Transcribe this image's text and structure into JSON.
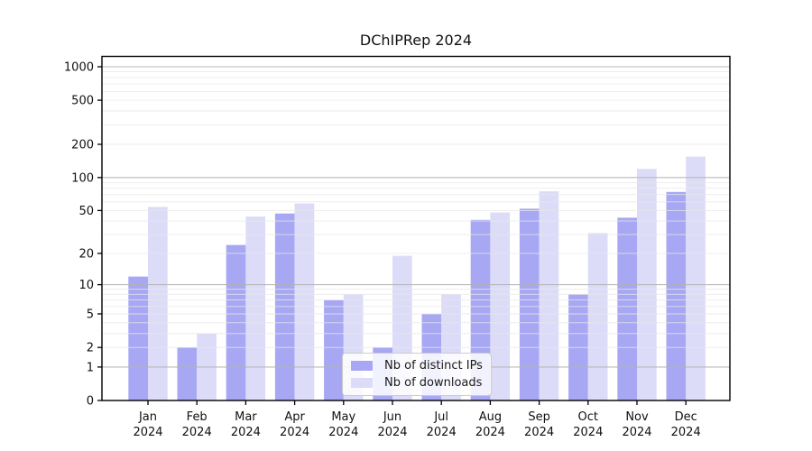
{
  "page": {
    "background": "#ffffff"
  },
  "chart_data": {
    "type": "bar",
    "title": "DChIPRep 2024",
    "categories": [
      "Jan 2024",
      "Feb 2024",
      "Mar 2024",
      "Apr 2024",
      "May 2024",
      "Jun 2024",
      "Jul 2024",
      "Aug 2024",
      "Sep 2024",
      "Oct 2024",
      "Nov 2024",
      "Dec 2024"
    ],
    "series": [
      {
        "name": "Nb of distinct IPs",
        "color": "#a7a7f4",
        "values": [
          12,
          2,
          24,
          47,
          7,
          2,
          5,
          41,
          52,
          8,
          43,
          74
        ]
      },
      {
        "name": "Nb of downloads",
        "color": "#dcdcf9",
        "values": [
          54,
          3,
          44,
          58,
          8,
          19,
          8,
          48,
          75,
          31,
          120,
          155
        ]
      }
    ],
    "xlabel": "",
    "ylabel": "",
    "yscale": "log1p",
    "yticks": [
      0,
      1,
      2,
      5,
      10,
      20,
      50,
      100,
      200,
      500,
      1000
    ],
    "ylim": [
      0,
      1240
    ],
    "grid": {
      "major_at": [
        1,
        10,
        100,
        1000
      ],
      "minor_at": [
        2,
        3,
        4,
        5,
        6,
        7,
        8,
        9,
        20,
        30,
        40,
        50,
        60,
        70,
        80,
        90,
        200,
        300,
        400,
        500,
        600,
        700,
        800,
        900
      ],
      "major_color": "#b2b2b2",
      "minor_color": "#e7e7e7"
    },
    "legend": {
      "location": "lower-center"
    }
  }
}
